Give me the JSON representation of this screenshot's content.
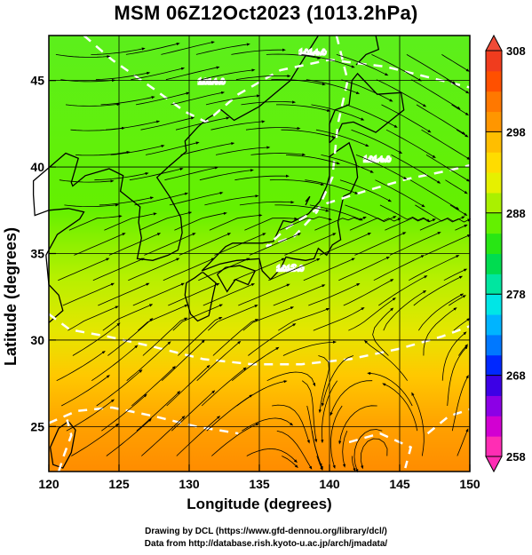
{
  "title": "MSM 06Z12Oct2023 (1013.2hPa)",
  "axes": {
    "xlabel": "Longitude (degrees)",
    "ylabel": "Latitude  (degrees)",
    "xticks": [
      "120",
      "125",
      "130",
      "135",
      "140",
      "145",
      "150"
    ],
    "yticks": [
      "25",
      "30",
      "35",
      "40",
      "45"
    ],
    "xlim": [
      120,
      150
    ],
    "ylim": [
      22.4,
      47.6
    ]
  },
  "colorbar": {
    "ticks": [
      "308",
      "298",
      "288",
      "278",
      "268",
      "258"
    ],
    "range": [
      258,
      308
    ],
    "colors": [
      "#ff2db4",
      "#d200d2",
      "#8c00e6",
      "#3c00e6",
      "#0028ff",
      "#0078ff",
      "#00b4ff",
      "#00e6e6",
      "#00e6a0",
      "#00dc50",
      "#28e614",
      "#64f000",
      "#aaf000",
      "#e6f000",
      "#ffdc00",
      "#ffbe00",
      "#ff9600",
      "#ff7800",
      "#ff5000",
      "#f03c1e"
    ]
  },
  "contour_labels": [
    "1014.0",
    "1014.0",
    "1014.0",
    "1013.0"
  ],
  "credits": {
    "line1": "Drawing by DCL (https://www.gfd-dennou.org/library/dcl/)",
    "line2": "Data from http://database.rish.kyoto-u.ac.jp/arch/jmadata/"
  }
}
